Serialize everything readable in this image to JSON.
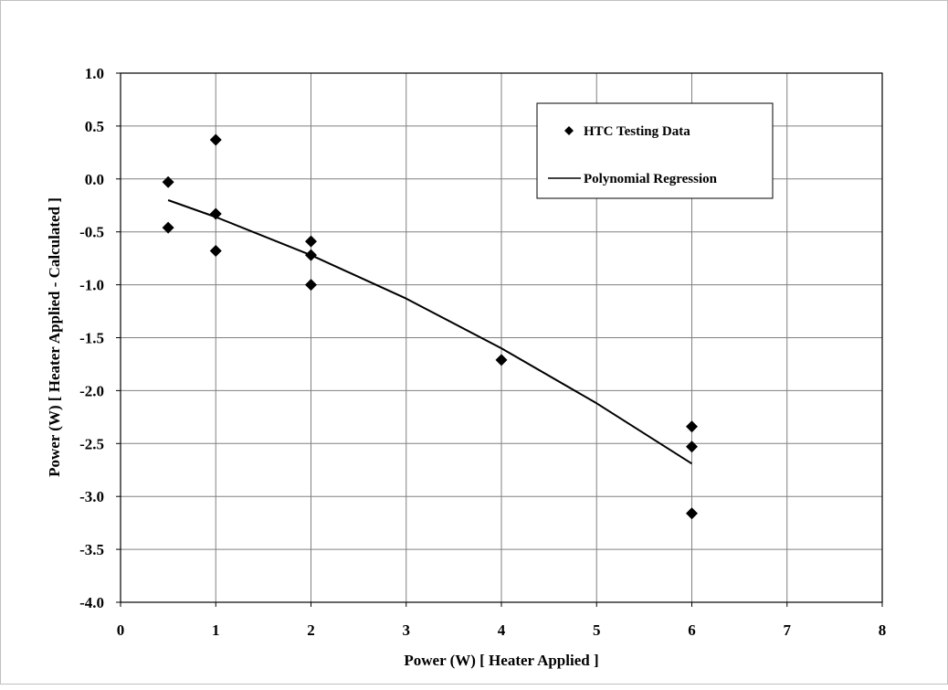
{
  "chart_data": {
    "type": "scatter",
    "title": "",
    "xlabel": "Power (W) [ Heater Applied ]",
    "ylabel": "Power (W) [ Heater Applied - Calculated ]",
    "xlim": [
      0,
      8
    ],
    "ylim": [
      -4.0,
      1.0
    ],
    "x_ticks": [
      "0",
      "1",
      "2",
      "3",
      "4",
      "5",
      "6",
      "7",
      "8"
    ],
    "y_ticks": [
      "1.0",
      "0.5",
      "0.0",
      "-0.5",
      "-1.0",
      "-1.5",
      "-2.0",
      "-2.5",
      "-3.0",
      "-3.5",
      "-4.0"
    ],
    "grid": true,
    "legend_position": "top-right",
    "series": [
      {
        "name": "HTC Testing Data",
        "kind": "scatter",
        "marker": "diamond",
        "color": "#000000",
        "points": [
          {
            "x": 0.5,
            "y": -0.03
          },
          {
            "x": 0.5,
            "y": -0.46
          },
          {
            "x": 1,
            "y": 0.37
          },
          {
            "x": 1,
            "y": -0.33
          },
          {
            "x": 1,
            "y": -0.68
          },
          {
            "x": 2,
            "y": -0.59
          },
          {
            "x": 2,
            "y": -0.72
          },
          {
            "x": 2,
            "y": -1.0
          },
          {
            "x": 4,
            "y": -1.71
          },
          {
            "x": 6,
            "y": -2.34
          },
          {
            "x": 6,
            "y": -2.53
          },
          {
            "x": 6,
            "y": -3.16
          }
        ]
      },
      {
        "name": "Polynomial Regression",
        "kind": "line",
        "color": "#000000",
        "points": [
          {
            "x": 0.5,
            "y": -0.2
          },
          {
            "x": 1,
            "y": -0.36
          },
          {
            "x": 2,
            "y": -0.72
          },
          {
            "x": 3,
            "y": -1.13
          },
          {
            "x": 4,
            "y": -1.6
          },
          {
            "x": 5,
            "y": -2.12
          },
          {
            "x": 6,
            "y": -2.69
          }
        ]
      }
    ]
  }
}
